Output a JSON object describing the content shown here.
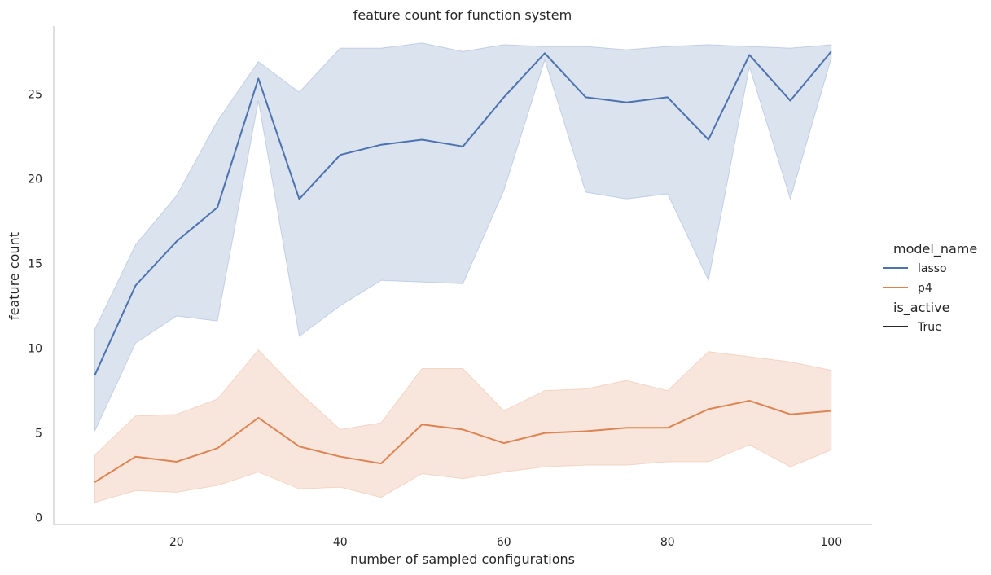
{
  "chart_data": {
    "type": "line",
    "title": "feature count for function system",
    "xlabel": "number of sampled configurations",
    "ylabel": "feature count",
    "xlim": [
      5,
      105
    ],
    "ylim": [
      -0.4,
      29
    ],
    "xticks": [
      20,
      40,
      60,
      80,
      100
    ],
    "yticks": [
      0,
      5,
      10,
      15,
      20,
      25
    ],
    "grid": false,
    "legend_position": "right",
    "x": [
      10,
      15,
      20,
      25,
      30,
      35,
      40,
      45,
      50,
      55,
      60,
      65,
      70,
      75,
      80,
      85,
      90,
      95,
      100
    ],
    "series": [
      {
        "name": "lasso",
        "color": "#4c72b0",
        "values": [
          8.4,
          13.7,
          16.3,
          18.3,
          25.9,
          18.8,
          21.4,
          22.0,
          22.3,
          21.9,
          24.8,
          27.4,
          24.8,
          24.5,
          24.8,
          22.3,
          27.3,
          24.6,
          27.5
        ],
        "ci_lower": [
          5.1,
          10.3,
          11.9,
          11.6,
          24.6,
          10.7,
          12.5,
          14.0,
          13.9,
          13.8,
          19.3,
          27.0,
          19.2,
          18.8,
          19.1,
          14.0,
          26.6,
          18.8,
          27.1
        ],
        "ci_upper": [
          11.1,
          16.1,
          19.0,
          23.4,
          26.9,
          25.1,
          27.7,
          27.7,
          28.0,
          27.5,
          27.9,
          27.8,
          27.8,
          27.6,
          27.8,
          27.9,
          27.8,
          27.7,
          27.9
        ]
      },
      {
        "name": "p4",
        "color": "#dd8452",
        "values": [
          2.1,
          3.6,
          3.3,
          4.1,
          5.9,
          4.2,
          3.6,
          3.2,
          5.5,
          5.2,
          4.4,
          5.0,
          5.1,
          5.3,
          5.3,
          6.4,
          6.9,
          6.1,
          6.3
        ],
        "ci_lower": [
          0.9,
          1.6,
          1.5,
          1.9,
          2.7,
          1.7,
          1.8,
          1.2,
          2.6,
          2.3,
          2.7,
          3.0,
          3.1,
          3.1,
          3.3,
          3.3,
          4.3,
          3.0,
          4.0
        ],
        "ci_upper": [
          3.7,
          6.0,
          6.1,
          7.0,
          9.9,
          7.4,
          5.2,
          5.6,
          8.8,
          8.8,
          6.3,
          7.5,
          7.6,
          8.1,
          7.5,
          9.8,
          9.5,
          9.2,
          8.7
        ]
      }
    ],
    "legend": {
      "hue_title": "model_name",
      "style_title": "is_active",
      "style_entries": [
        "True"
      ],
      "style_color": "#262626"
    }
  }
}
